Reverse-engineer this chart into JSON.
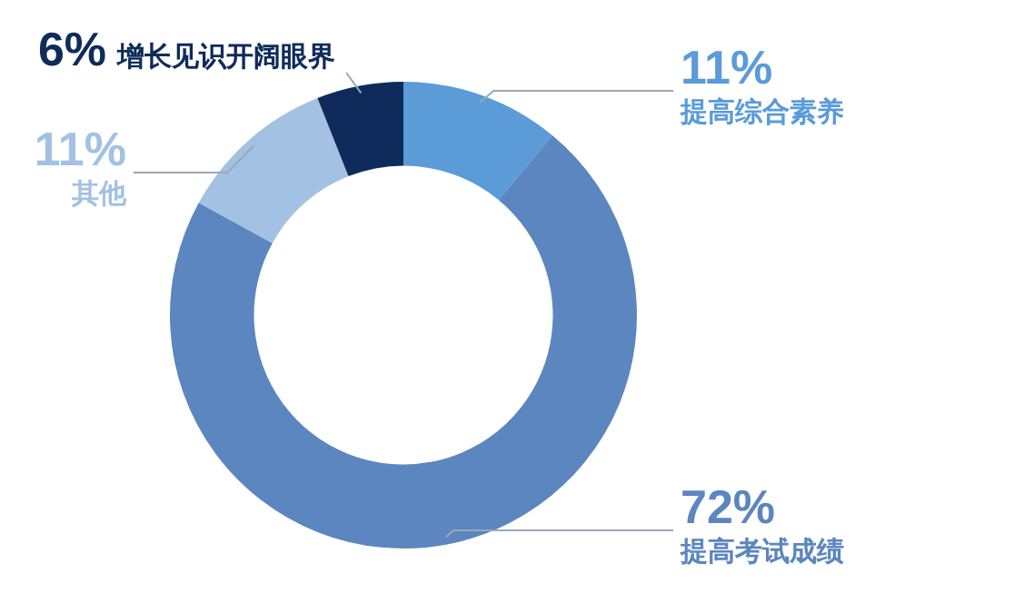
{
  "chart_data": {
    "type": "donut",
    "categories": [
      "提高综合素养",
      "提高考试成绩",
      "其他",
      "增长见识开阔眼界"
    ],
    "values": [
      11,
      72,
      11,
      6
    ],
    "colors": [
      "#5a9bd8",
      "#5b86bf",
      "#a3c1e2",
      "#0f2b5b"
    ],
    "value_labels": [
      "11%",
      "72%",
      "11%",
      "6%"
    ],
    "legend": false
  }
}
